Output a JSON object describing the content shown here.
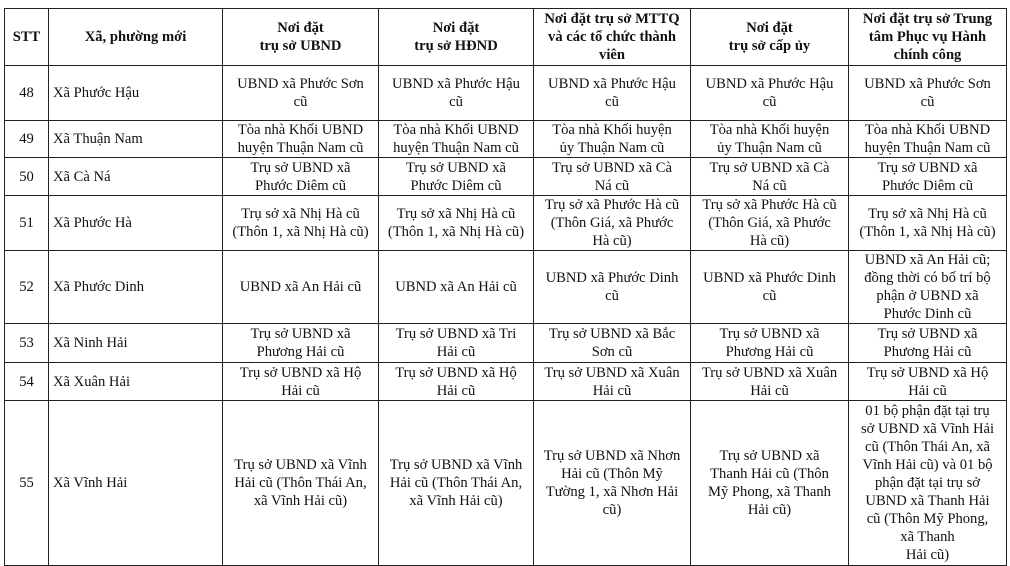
{
  "headers": [
    "STT",
    "Xã, phường mới",
    "Nơi đặt\ntrụ sở UBND",
    "Nơi đặt\ntrụ sở HĐND",
    "Nơi đặt trụ sở MTTQ\nvà các tổ chức thành\nviên",
    "Nơi đặt\ntrụ sở cấp ủy",
    "Nơi đặt trụ sở Trung\ntâm Phục vụ Hành\nchính công"
  ],
  "rows": [
    {
      "stt": "48",
      "name": "Xã Phước Hậu",
      "ubnd": "UBND xã Phước Sơn\ncũ",
      "hdnd": "UBND xã Phước Hậu\ncũ",
      "mttq": "UBND xã Phước Hậu\ncũ",
      "capuy": "UBND xã Phước Hậu\ncũ",
      "hcc": "UBND xã Phước Sơn\ncũ"
    },
    {
      "stt": "49",
      "name": "Xã Thuận Nam",
      "ubnd": "Tòa nhà Khối UBND\nhuyện Thuận Nam cũ",
      "hdnd": "Tòa nhà Khối UBND\nhuyện Thuận Nam cũ",
      "mttq": "Tòa nhà Khối huyện\nủy Thuận Nam cũ",
      "capuy": "Tòa nhà Khối huyện\nủy Thuận Nam cũ",
      "hcc": "Tòa nhà Khối UBND\nhuyện Thuận Nam cũ"
    },
    {
      "stt": "50",
      "name": "Xã Cà Ná",
      "ubnd": "Trụ sở UBND xã\nPhước Diêm cũ",
      "hdnd": "Trụ sở UBND xã\nPhước Diêm cũ",
      "mttq": "Trụ sở UBND xã Cà\nNá cũ",
      "capuy": "Trụ sở UBND xã Cà\nNá cũ",
      "hcc": "Trụ sở UBND xã\nPhước Diêm cũ"
    },
    {
      "stt": "51",
      "name": "Xã Phước Hà",
      "ubnd": "Trụ sở xã Nhị Hà cũ\n(Thôn 1, xã Nhị Hà cũ)",
      "hdnd": "Trụ sở xã Nhị Hà cũ\n(Thôn 1, xã Nhị Hà cũ)",
      "mttq": "Trụ sở xã Phước Hà cũ\n(Thôn Giá, xã Phước\nHà cũ)",
      "capuy": "Trụ sở xã Phước Hà cũ\n(Thôn Giá, xã Phước\nHà cũ)",
      "hcc": "Trụ sở xã Nhị Hà cũ\n(Thôn 1, xã Nhị Hà cũ)"
    },
    {
      "stt": "52",
      "name": "Xã Phước Dinh",
      "ubnd": "UBND xã An Hải cũ",
      "hdnd": "UBND xã An Hải cũ",
      "mttq": "UBND xã Phước Dinh\ncũ",
      "capuy": "UBND xã Phước Dinh\ncũ",
      "hcc": "UBND xã An Hải cũ;\nđồng thời có bố trí bộ\nphận ở UBND xã\nPhước Dinh cũ"
    },
    {
      "stt": "53",
      "name": "Xã Ninh Hải",
      "ubnd": "Trụ sở UBND xã\nPhương Hải cũ",
      "hdnd": "Trụ sở UBND xã Tri\nHải cũ",
      "mttq": "Trụ sở UBND xã Bắc\nSơn cũ",
      "capuy": "Trụ sở UBND xã\nPhương Hải cũ",
      "hcc": "Trụ sở UBND xã\nPhương Hải cũ"
    },
    {
      "stt": "54",
      "name": "Xã Xuân Hải",
      "ubnd": "Trụ sở UBND xã Hộ\nHải cũ",
      "hdnd": "Trụ sở UBND xã Hộ\nHải cũ",
      "mttq": "Trụ sở UBND xã Xuân\nHải cũ",
      "capuy": "Trụ sở UBND xã Xuân\nHải cũ",
      "hcc": "Trụ sở UBND xã Hộ\nHải cũ"
    },
    {
      "stt": "55",
      "name": "Xã Vĩnh Hải",
      "ubnd": "Trụ sở UBND xã Vĩnh\nHải cũ (Thôn Thái An,\nxã Vĩnh Hải cũ)",
      "hdnd": "Trụ sở UBND xã Vĩnh\nHải cũ (Thôn Thái An,\nxã Vĩnh Hải cũ)",
      "mttq": "Trụ sở UBND xã Nhơn\nHải cũ (Thôn Mỹ\nTường 1, xã Nhơn Hải\ncũ)",
      "capuy": "Trụ sở UBND xã\nThanh Hải cũ (Thôn\nMỹ Phong, xã Thanh\nHải cũ)",
      "hcc": "01 bộ phận đặt tại trụ\nsở UBND xã Vĩnh Hải\ncũ (Thôn Thái An, xã\nVĩnh Hải cũ) và 01 bộ\nphận đặt tại trụ sở\nUBND xã Thanh Hải\ncũ (Thôn Mỹ Phong,\nxã Thanh\nHải cũ)"
    }
  ]
}
